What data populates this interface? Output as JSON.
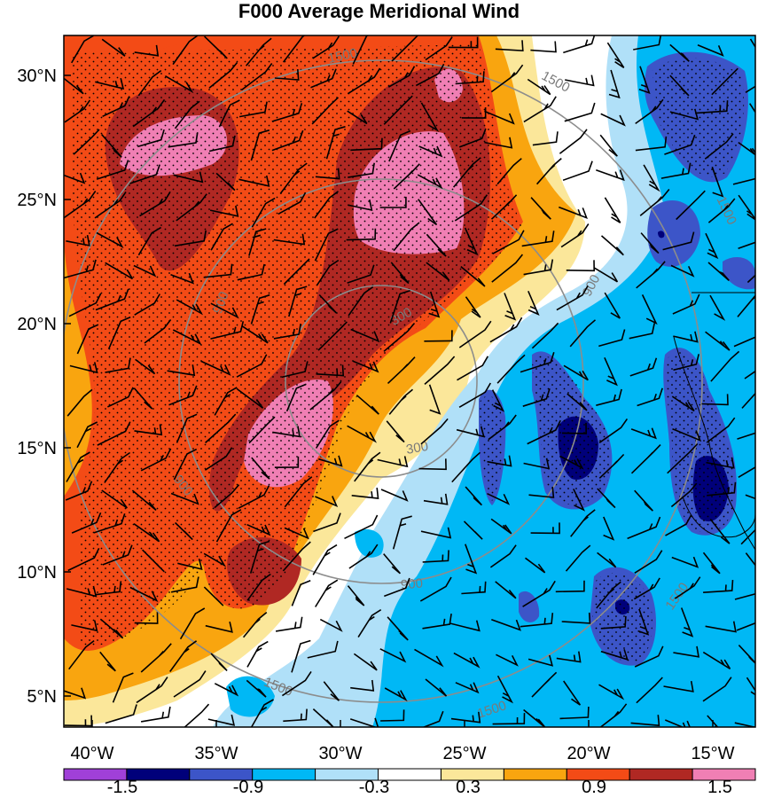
{
  "title": "F000 Average Meridional Wind",
  "map": {
    "lat_labels": [
      "30°N",
      "25°N",
      "20°N",
      "15°N",
      "10°N",
      "5°N"
    ],
    "lon_labels": [
      "40°W",
      "35°W",
      "30°W",
      "25°W",
      "20°W",
      "15°W"
    ],
    "lat_values": [
      30,
      25,
      20,
      15,
      10,
      5
    ],
    "lon_values": [
      -40,
      -35,
      -30,
      -25,
      -20,
      -15
    ],
    "range_ring_labels": [
      "1500",
      "1500",
      "1500",
      "1500",
      "1500",
      "1500",
      "900",
      "900",
      "900",
      "900",
      "300",
      "300"
    ],
    "range_ring_values_km": [
      300,
      900,
      1500
    ],
    "overlays": [
      "filled-contours",
      "stippling",
      "wind-barbs",
      "range-rings"
    ]
  },
  "colorbar": {
    "labels": [
      "-1.5",
      "-0.9",
      "-0.3",
      "0.3",
      "0.9",
      "1.5"
    ],
    "levels": [
      -1.8,
      -1.5,
      -1.2,
      -0.9,
      -0.6,
      -0.3,
      0.3,
      0.6,
      0.9,
      1.2,
      1.5,
      1.8
    ],
    "colors": [
      "#a040d8",
      "#00007a",
      "#3c55c8",
      "#00b8f5",
      "#b0e0f8",
      "#ffffff",
      "#fbe79a",
      "#f9a50f",
      "#f34b16",
      "#b02823",
      "#f07fb4"
    ]
  },
  "palette": {
    "neg_strong": "#00007a",
    "neg_mid": "#3c55c8",
    "neg_light": "#00b8f5",
    "neg_pale": "#b0e0f8",
    "pos_pale": "#fbe79a",
    "pos_light": "#f9a50f",
    "pos_mid": "#f34b16",
    "pos_strong": "#b02823",
    "pos_max": "#f07fb4",
    "ring": "#8c8c8c"
  }
}
